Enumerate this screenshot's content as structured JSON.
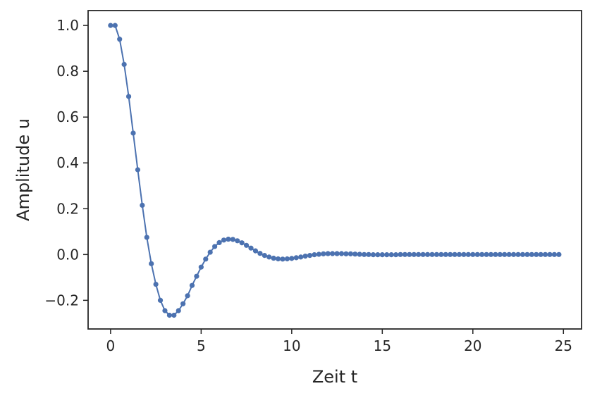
{
  "chart_data": {
    "type": "line",
    "title": "",
    "xlabel": "Zeit t",
    "ylabel": "Amplitude u",
    "xlim": [
      -1.24,
      26.0
    ],
    "ylim": [
      -0.325,
      1.065
    ],
    "x_ticks": [
      0,
      5,
      10,
      15,
      20,
      25
    ],
    "x_tick_labels": [
      "0",
      "5",
      "10",
      "15",
      "20",
      "25"
    ],
    "y_ticks": [
      -0.2,
      0.0,
      0.2,
      0.4,
      0.6,
      0.8,
      1.0
    ],
    "y_tick_labels": [
      "−0.2",
      "0.0",
      "0.2",
      "0.4",
      "0.6",
      "0.8",
      "1.0"
    ],
    "grid": false,
    "legend": "none",
    "colors": {
      "series": "#4c72b0",
      "axes": "#262626",
      "background": "#ffffff"
    },
    "series": [
      {
        "marker": "circle",
        "x": [
          0,
          0.25,
          0.5,
          0.75,
          1,
          1.25,
          1.5,
          1.75,
          2,
          2.25,
          2.5,
          2.75,
          3,
          3.25,
          3.5,
          3.75,
          4,
          4.25,
          4.5,
          4.75,
          5,
          5.25,
          5.5,
          5.75,
          6,
          6.25,
          6.5,
          6.75,
          7,
          7.25,
          7.5,
          7.75,
          8,
          8.25,
          8.5,
          8.75,
          9,
          9.25,
          9.5,
          9.75,
          10,
          10.25,
          10.5,
          10.75,
          11,
          11.25,
          11.5,
          11.75,
          12,
          12.25,
          12.5,
          12.75,
          13,
          13.25,
          13.5,
          13.75,
          14,
          14.25,
          14.5,
          14.75,
          15,
          15.25,
          15.5,
          15.75,
          16,
          16.25,
          16.5,
          16.75,
          17,
          17.25,
          17.5,
          17.75,
          18,
          18.25,
          18.5,
          18.75,
          19,
          19.25,
          19.5,
          19.75,
          20,
          20.25,
          20.5,
          20.75,
          21,
          21.25,
          21.5,
          21.75,
          22,
          22.25,
          22.5,
          22.75,
          23,
          23.25,
          23.5,
          23.75,
          24,
          24.25,
          24.5,
          24.75
        ],
        "y": [
          1.0,
          1.0,
          0.94,
          0.83,
          0.69,
          0.53,
          0.37,
          0.215,
          0.075,
          -0.04,
          -0.13,
          -0.2,
          -0.245,
          -0.265,
          -0.265,
          -0.245,
          -0.215,
          -0.18,
          -0.135,
          -0.095,
          -0.055,
          -0.02,
          0.01,
          0.035,
          0.052,
          0.063,
          0.067,
          0.066,
          0.06,
          0.051,
          0.04,
          0.028,
          0.016,
          0.005,
          -0.004,
          -0.011,
          -0.016,
          -0.019,
          -0.02,
          -0.019,
          -0.017,
          -0.014,
          -0.011,
          -0.007,
          -0.004,
          -0.001,
          0.001,
          0.003,
          0.004,
          0.004,
          0.004,
          0.004,
          0.003,
          0.003,
          0.002,
          0.001,
          0.0,
          0.0,
          -0.001,
          -0.001,
          -0.001,
          -0.001,
          -0.001,
          -0.001,
          0.0,
          0.0,
          0.0,
          0.0,
          0.0,
          0.0,
          0.0,
          0.0,
          0.0,
          0.0,
          0.0,
          0.0,
          0.0,
          0.0,
          0.0,
          0.0,
          0.0,
          0.0,
          0.0,
          0.0,
          0.0,
          0.0,
          0.0,
          0.0,
          0.0,
          0.0,
          0.0,
          0.0,
          0.0,
          0.0,
          0.0,
          0.0,
          0.0,
          0.0,
          0.0,
          0.0
        ]
      }
    ]
  }
}
